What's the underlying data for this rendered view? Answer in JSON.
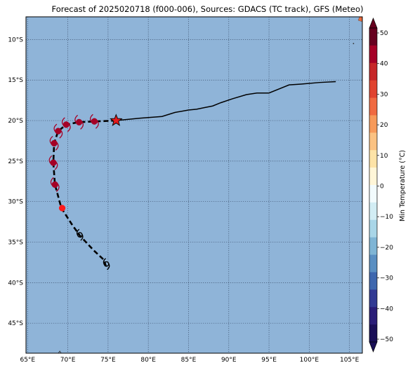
{
  "title": "Forecast of 2025020718 (f000-006), Sources: GDACS (TC track), GFS (Meteo)",
  "map": {
    "ocean_color": "#8fb4d8",
    "lon_ticks": [
      "65°E",
      "70°E",
      "75°E",
      "80°E",
      "85°E",
      "90°E",
      "95°E",
      "100°E",
      "105°E"
    ],
    "lat_ticks": [
      "10°S",
      "15°S",
      "20°S",
      "25°S",
      "30°S",
      "35°S",
      "40°S",
      "45°S"
    ],
    "grid": "dotted"
  },
  "colorbar": {
    "label": "Min Temperature (°C)",
    "ticks": [
      "50",
      "40",
      "30",
      "20",
      "10",
      "0",
      "−10",
      "−20",
      "−30",
      "−40",
      "−50"
    ],
    "colors_top_to_bottom": [
      "#67001f",
      "#a50026",
      "#c62628",
      "#e0432f",
      "#f06a41",
      "#f79a5a",
      "#fbc282",
      "#fde3a7",
      "#fff6d8",
      "#f2fbfd",
      "#d2edf4",
      "#a9d6e8",
      "#7fb5d5",
      "#5a8fc2",
      "#3e67ae",
      "#323a93",
      "#2a1d77",
      "#1a0f57"
    ]
  },
  "track": {
    "color": "#000000",
    "current_marker_color": "#e41a1c",
    "past": [
      [
        103.3,
        -15.2
      ],
      [
        101.3,
        -15.3
      ],
      [
        99.0,
        -15.5
      ],
      [
        97.5,
        -15.6
      ],
      [
        95.0,
        -16.6
      ],
      [
        93.5,
        -16.6
      ],
      [
        92.2,
        -16.8
      ],
      [
        90.5,
        -17.3
      ],
      [
        89.0,
        -17.8
      ],
      [
        88.0,
        -18.2
      ],
      [
        87.0,
        -18.4
      ],
      [
        86.0,
        -18.6
      ],
      [
        85.0,
        -18.7
      ],
      [
        83.3,
        -19.0
      ],
      [
        81.7,
        -19.5
      ],
      [
        79.0,
        -19.7
      ],
      [
        76.0,
        -20.0
      ]
    ],
    "forecast": [
      [
        76.0,
        -20.0
      ],
      [
        73.5,
        -20.1
      ],
      [
        71.3,
        -20.2
      ],
      [
        69.8,
        -20.5
      ],
      [
        68.8,
        -21.3
      ],
      [
        68.3,
        -22.8
      ],
      [
        68.2,
        -25.2
      ],
      [
        68.4,
        -27.9
      ],
      [
        69.2,
        -30.8
      ],
      [
        70.5,
        -32.8
      ],
      [
        71.5,
        -34.2
      ],
      [
        73.2,
        -36.0
      ],
      [
        74.5,
        -37.2
      ],
      [
        74.8,
        -38.2
      ]
    ],
    "storm_points": [
      {
        "lon": 73.3,
        "lat": -20.1,
        "color": "#a50026",
        "cyclone": true
      },
      {
        "lon": 71.4,
        "lat": -20.2,
        "color": "#a50026",
        "cyclone": true
      },
      {
        "lon": 69.8,
        "lat": -20.5,
        "color": "#a50026",
        "cyclone": true
      },
      {
        "lon": 68.8,
        "lat": -21.3,
        "color": "#a50026",
        "cyclone": true
      },
      {
        "lon": 68.3,
        "lat": -22.8,
        "color": "#a50026",
        "cyclone": true
      },
      {
        "lon": 68.2,
        "lat": -25.2,
        "color": "#a50026",
        "cyclone": true
      },
      {
        "lon": 68.4,
        "lat": -27.9,
        "color": "#a50026",
        "cyclone": true
      },
      {
        "lon": 69.3,
        "lat": -30.8,
        "color": "#ff1a1a",
        "cyclone": false
      }
    ],
    "low_points": [
      {
        "lon": 71.5,
        "lat": -34.1
      },
      {
        "lon": 74.8,
        "lat": -37.7
      }
    ]
  }
}
